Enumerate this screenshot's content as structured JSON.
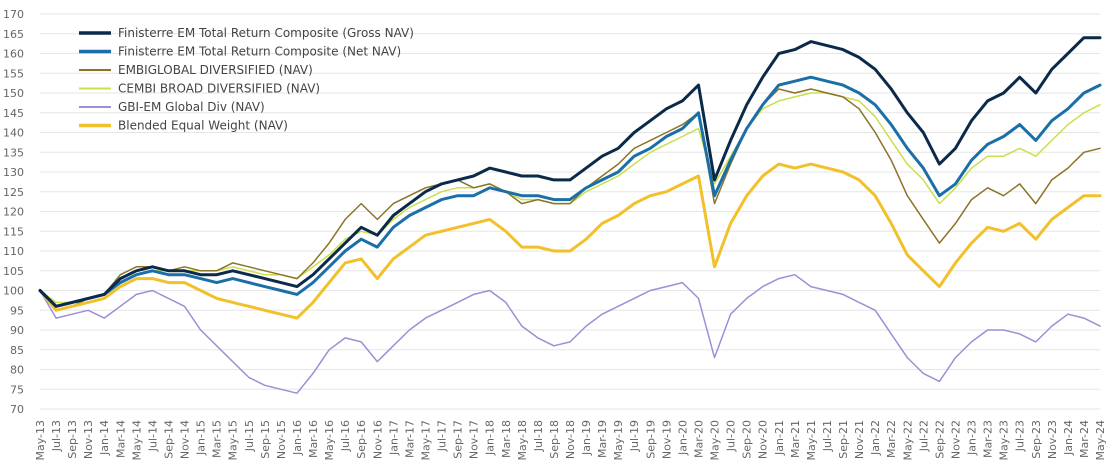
{
  "chart_data": {
    "type": "line",
    "title": "",
    "xlabel": "",
    "ylabel": "",
    "ylim": [
      70,
      170
    ],
    "yticks": [
      70,
      75,
      80,
      85,
      90,
      95,
      100,
      105,
      110,
      115,
      120,
      125,
      130,
      135,
      140,
      145,
      150,
      155,
      160,
      165,
      170
    ],
    "grid": "horizontal",
    "legend_position": "top-left",
    "categories": [
      "May-13",
      "Jul-13",
      "Sep-13",
      "Nov-13",
      "Jan-14",
      "Mar-14",
      "May-14",
      "Jul-14",
      "Sep-14",
      "Nov-14",
      "Jan-15",
      "Mar-15",
      "May-15",
      "Jul-15",
      "Sep-15",
      "Nov-15",
      "Jan-16",
      "Mar-16",
      "May-16",
      "Jul-16",
      "Sep-16",
      "Nov-16",
      "Jan-17",
      "Mar-17",
      "May-17",
      "Jul-17",
      "Sep-17",
      "Nov-17",
      "Jan-18",
      "Mar-18",
      "May-18",
      "Jul-18",
      "Sep-18",
      "Nov-18",
      "Jan-19",
      "Mar-19",
      "May-19",
      "Jul-19",
      "Sep-19",
      "Nov-19",
      "Jan-20",
      "Mar-20",
      "May-20",
      "Jul-20",
      "Sep-20",
      "Nov-20",
      "Jan-21",
      "Mar-21",
      "May-21",
      "Jul-21",
      "Sep-21",
      "Nov-21",
      "Jan-22",
      "Mar-22",
      "May-22",
      "Jul-22",
      "Sep-22",
      "Nov-22",
      "Jan-23",
      "Mar-23",
      "May-23",
      "Jul-23",
      "Sep-23",
      "Nov-23",
      "Jan-24",
      "Mar-24",
      "May-24"
    ],
    "series": [
      {
        "name": "Finisterre EM Total Return Composite (Gross NAV)",
        "color": "#0b2a4a",
        "width": 3,
        "values": [
          100,
          96,
          97,
          98,
          99,
          103,
          105,
          106,
          105,
          105,
          104,
          104,
          105,
          104,
          103,
          102,
          101,
          104,
          108,
          112,
          116,
          114,
          119,
          122,
          125,
          127,
          128,
          129,
          131,
          130,
          129,
          129,
          128,
          128,
          131,
          134,
          136,
          140,
          143,
          146,
          148,
          152,
          128,
          138,
          147,
          154,
          160,
          161,
          163,
          162,
          161,
          159,
          156,
          151,
          145,
          140,
          132,
          136,
          143,
          148,
          150,
          154,
          150,
          156,
          160,
          164,
          164
        ]
      },
      {
        "name": "Finisterre EM Total Return Composite (Net NAV)",
        "color": "#1a6fa8",
        "width": 3,
        "values": [
          100,
          96,
          97,
          98,
          99,
          102,
          104,
          105,
          104,
          104,
          103,
          102,
          103,
          102,
          101,
          100,
          99,
          102,
          106,
          110,
          113,
          111,
          116,
          119,
          121,
          123,
          124,
          124,
          126,
          125,
          124,
          124,
          123,
          123,
          126,
          128,
          130,
          134,
          136,
          139,
          141,
          145,
          124,
          133,
          141,
          147,
          152,
          153,
          154,
          153,
          152,
          150,
          147,
          142,
          136,
          131,
          124,
          127,
          133,
          137,
          139,
          142,
          138,
          143,
          146,
          150,
          152
        ]
      },
      {
        "name": "EMBIGLOBAL DIVERSIFIED  (NAV)",
        "color": "#8b7328",
        "width": 1.5,
        "values": [
          100,
          95,
          96,
          98,
          99,
          104,
          106,
          106,
          105,
          106,
          105,
          105,
          107,
          106,
          105,
          104,
          103,
          107,
          112,
          118,
          122,
          118,
          122,
          124,
          126,
          127,
          128,
          126,
          127,
          125,
          122,
          123,
          122,
          122,
          126,
          129,
          132,
          136,
          138,
          140,
          142,
          145,
          122,
          132,
          141,
          147,
          151,
          150,
          151,
          150,
          149,
          146,
          140,
          133,
          124,
          118,
          112,
          117,
          123,
          126,
          124,
          127,
          122,
          128,
          131,
          135,
          136
        ]
      },
      {
        "name": "CEMBI BROAD DIVERSIFIED (NAV)",
        "color": "#c9e04a",
        "width": 1.5,
        "values": [
          100,
          97,
          97,
          98,
          99,
          102,
          104,
          105,
          105,
          105,
          105,
          105,
          106,
          105,
          104,
          104,
          103,
          106,
          109,
          113,
          115,
          114,
          118,
          121,
          123,
          125,
          126,
          126,
          127,
          125,
          123,
          123,
          122,
          122,
          125,
          127,
          129,
          132,
          135,
          137,
          139,
          141,
          127,
          134,
          141,
          146,
          148,
          149,
          150,
          150,
          149,
          148,
          144,
          138,
          132,
          128,
          122,
          126,
          131,
          134,
          134,
          136,
          134,
          138,
          142,
          145,
          147
        ]
      },
      {
        "name": "GBI-EM Global Div (NAV)",
        "color": "#9b8fd6",
        "width": 1.5,
        "values": [
          100,
          93,
          94,
          95,
          93,
          96,
          99,
          100,
          98,
          96,
          90,
          86,
          82,
          78,
          76,
          75,
          74,
          79,
          85,
          88,
          87,
          82,
          86,
          90,
          93,
          95,
          97,
          99,
          100,
          97,
          91,
          88,
          86,
          87,
          91,
          94,
          96,
          98,
          100,
          101,
          102,
          98,
          83,
          94,
          98,
          101,
          103,
          104,
          101,
          100,
          99,
          97,
          95,
          89,
          83,
          79,
          77,
          83,
          87,
          90,
          90,
          89,
          87,
          91,
          94,
          93,
          91
        ]
      },
      {
        "name": "Blended Equal Weight (NAV)",
        "color": "#f2c02a",
        "width": 3,
        "values": [
          100,
          95,
          96,
          97,
          98,
          101,
          103,
          103,
          102,
          102,
          100,
          98,
          97,
          96,
          95,
          94,
          93,
          97,
          102,
          107,
          108,
          103,
          108,
          111,
          114,
          115,
          116,
          117,
          118,
          115,
          111,
          111,
          110,
          110,
          113,
          117,
          119,
          122,
          124,
          125,
          127,
          129,
          106,
          117,
          124,
          129,
          132,
          131,
          132,
          131,
          130,
          128,
          124,
          117,
          109,
          105,
          101,
          107,
          112,
          116,
          115,
          117,
          113,
          118,
          121,
          124,
          124
        ]
      }
    ]
  }
}
